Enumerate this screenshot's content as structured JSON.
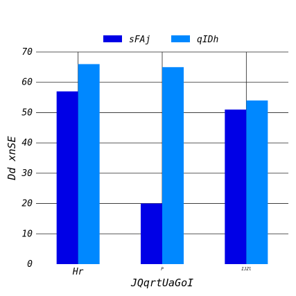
{
  "chart_data": {
    "type": "bar",
    "categories": [
      "Hr",
      "P",
      "IJZl"
    ],
    "series": [
      {
        "name": "sFAj",
        "values": [
          57,
          20,
          51
        ],
        "color": "#0000e6"
      },
      {
        "name": "qIDh",
        "values": [
          66,
          65,
          54
        ],
        "color": "#0088ff"
      }
    ],
    "xlabel": "JQqrtUaGoI",
    "ylabel": "Dd  xnSE",
    "ylim": [
      0,
      70
    ],
    "yticks": [
      0,
      10,
      20,
      30,
      40,
      50,
      60,
      70
    ],
    "grid": true,
    "legend_position": "top-center"
  }
}
